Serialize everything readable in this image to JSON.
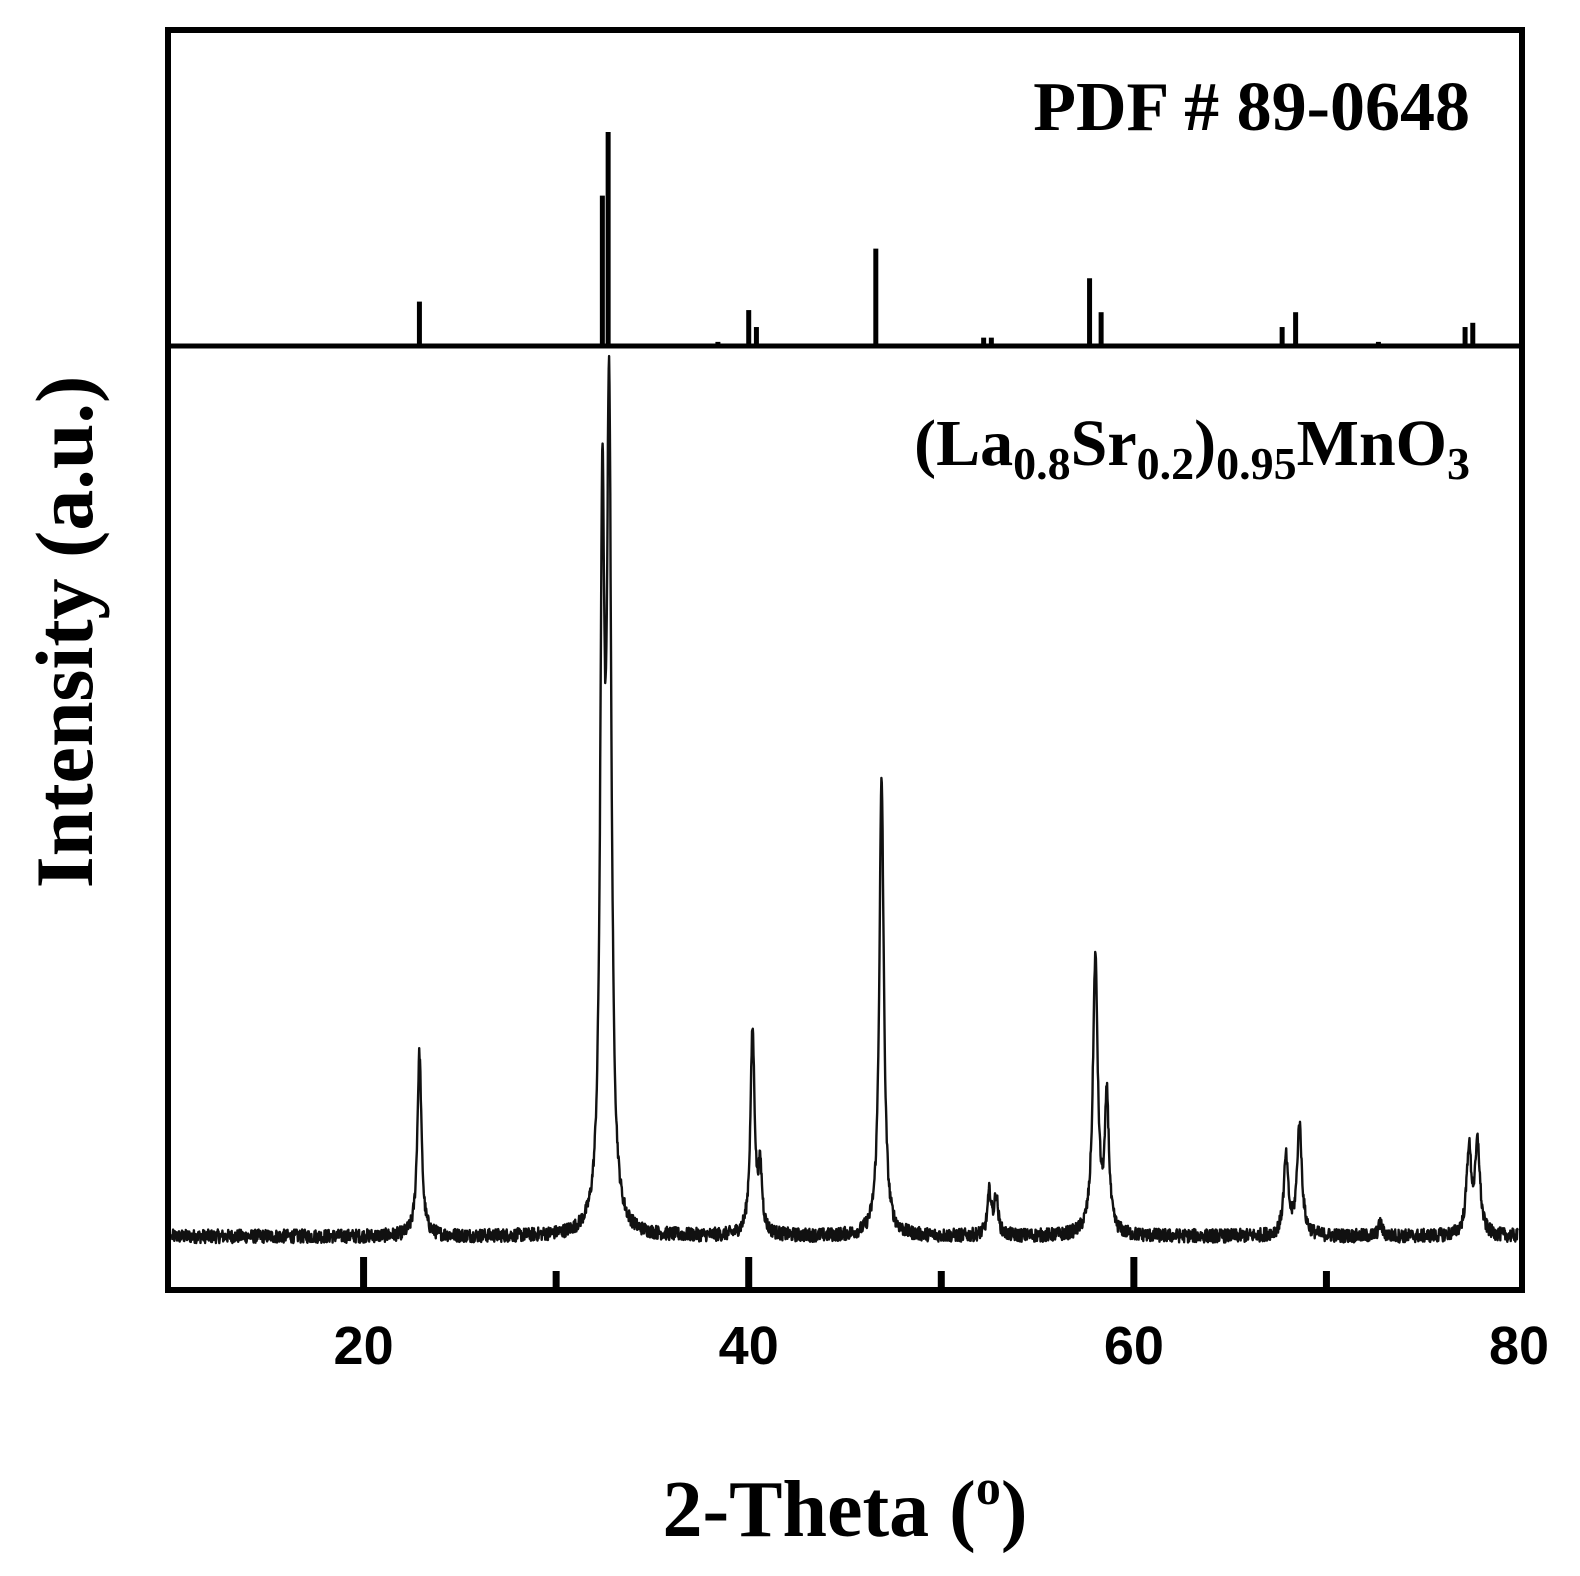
{
  "chart_data": {
    "type": "line",
    "xlabel": "2-Theta (",
    "xlabel_sup": "o",
    "xlabel_close": ")",
    "ylabel": "Intensity (a.u.)",
    "xlim": [
      10,
      80
    ],
    "x_ticks_major": [
      20,
      40,
      60,
      80
    ],
    "x_tick_labels": [
      "20",
      "40",
      "60",
      "80"
    ],
    "x_ticks_minor": [
      30,
      50,
      70
    ],
    "grid": false,
    "panels": [
      {
        "type": "reference_bars",
        "label": "PDF # 89-0648",
        "ylim": [
          0,
          100
        ],
        "bars": [
          {
            "x": 22.9,
            "h": 20
          },
          {
            "x": 32.4,
            "h": 70
          },
          {
            "x": 32.7,
            "h": 100
          },
          {
            "x": 38.4,
            "h": 1
          },
          {
            "x": 40.0,
            "h": 16
          },
          {
            "x": 40.4,
            "h": 8
          },
          {
            "x": 46.6,
            "h": 45
          },
          {
            "x": 52.2,
            "h": 3
          },
          {
            "x": 52.6,
            "h": 3
          },
          {
            "x": 57.7,
            "h": 31
          },
          {
            "x": 58.3,
            "h": 15
          },
          {
            "x": 67.7,
            "h": 8
          },
          {
            "x": 68.4,
            "h": 15
          },
          {
            "x": 72.7,
            "h": 1
          },
          {
            "x": 77.2,
            "h": 8
          },
          {
            "x": 77.6,
            "h": 10
          }
        ]
      },
      {
        "type": "pattern",
        "label": {
          "open": "(",
          "el1": "La",
          "sub1": "0.8",
          "el2": "Sr",
          "sub2": "0.2",
          "close": ")",
          "sub3": "0.95",
          "el3": "MnO",
          "sub4": "3"
        },
        "ylim": [
          0,
          100
        ],
        "baseline": 3.0,
        "noise": 0.8,
        "peaks": [
          {
            "x": 22.9,
            "h": 21.5,
            "w": 0.13
          },
          {
            "x": 32.4,
            "h": 80.5,
            "w": 0.13
          },
          {
            "x": 32.75,
            "h": 93.5,
            "w": 0.14
          },
          {
            "x": 40.2,
            "h": 24.0,
            "w": 0.13
          },
          {
            "x": 40.6,
            "h": 7.0,
            "w": 0.12
          },
          {
            "x": 46.9,
            "h": 53.5,
            "w": 0.14
          },
          {
            "x": 52.5,
            "h": 5.0,
            "w": 0.12
          },
          {
            "x": 52.85,
            "h": 4.5,
            "w": 0.12
          },
          {
            "x": 58.0,
            "h": 32.5,
            "w": 0.15
          },
          {
            "x": 58.6,
            "h": 15.5,
            "w": 0.13
          },
          {
            "x": 67.9,
            "h": 9.0,
            "w": 0.14
          },
          {
            "x": 68.6,
            "h": 13.0,
            "w": 0.15
          },
          {
            "x": 72.8,
            "h": 1.5,
            "w": 0.12
          },
          {
            "x": 77.4,
            "h": 10.0,
            "w": 0.15
          },
          {
            "x": 77.85,
            "h": 10.5,
            "w": 0.15
          }
        ]
      }
    ]
  }
}
